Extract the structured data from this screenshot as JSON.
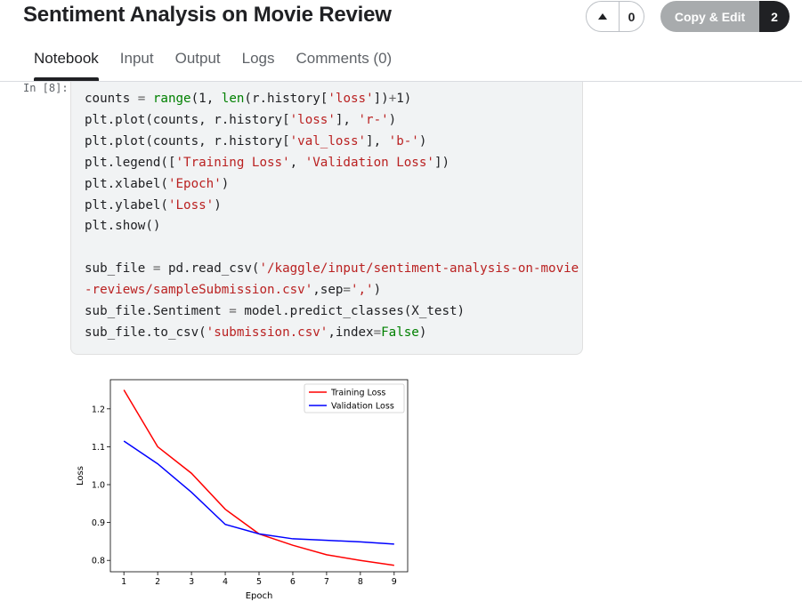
{
  "header": {
    "title": "Sentiment Analysis on Movie Review",
    "vote_count": "0",
    "copy_label": "Copy & Edit",
    "copy_count": "2"
  },
  "tabs": [
    {
      "label": "Notebook",
      "active": true
    },
    {
      "label": "Input",
      "active": false
    },
    {
      "label": "Output",
      "active": false
    },
    {
      "label": "Logs",
      "active": false
    },
    {
      "label": "Comments (0)",
      "active": false
    }
  ],
  "cell": {
    "prompt": "In [8]:",
    "code_lines": [
      "counts = range(1, len(r.history['loss'])+1)",
      "plt.plot(counts, r.history['loss'], 'r-')",
      "plt.plot(counts, r.history['val_loss'], 'b-')",
      "plt.legend(['Training Loss', 'Validation Loss'])",
      "plt.xlabel('Epoch')",
      "plt.ylabel('Loss')",
      "plt.show()",
      "",
      "sub_file = pd.read_csv('/kaggle/input/sentiment-analysis-on-movie",
      "-reviews/sampleSubmission.csv',sep=',')",
      "sub_file.Sentiment = model.predict_classes(X_test)",
      "sub_file.to_csv('submission.csv',index=False)"
    ]
  },
  "chart_data": {
    "type": "line",
    "x": [
      1,
      2,
      3,
      4,
      5,
      6,
      7,
      8,
      9
    ],
    "series": [
      {
        "name": "Training Loss",
        "color": "#ff0000",
        "values": [
          1.25,
          1.1,
          1.03,
          0.935,
          0.87,
          0.84,
          0.815,
          0.8,
          0.787
        ]
      },
      {
        "name": "Validation Loss",
        "color": "#0000ff",
        "values": [
          1.115,
          1.055,
          0.98,
          0.895,
          0.87,
          0.857,
          0.853,
          0.849,
          0.843
        ]
      }
    ],
    "xlabel": "Epoch",
    "ylabel": "Loss",
    "xticks": [
      "1",
      "2",
      "3",
      "4",
      "5",
      "6",
      "7",
      "8",
      "9"
    ],
    "yticks": [
      "0.8",
      "0.9",
      "1.0",
      "1.1",
      "1.2"
    ],
    "ytick_values": [
      0.8,
      0.9,
      1.0,
      1.1,
      1.2
    ],
    "xlim": [
      0.6,
      9.4
    ],
    "ylim": [
      0.77,
      1.277
    ],
    "legend_position": "upper right",
    "grid": false
  }
}
